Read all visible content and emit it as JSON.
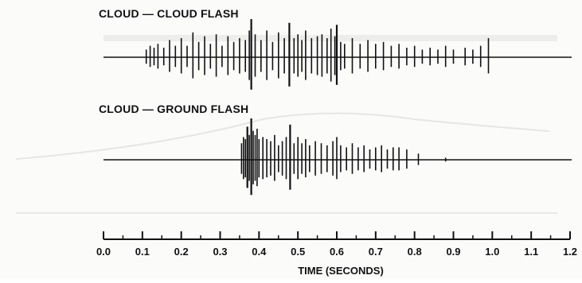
{
  "chart_data": [
    {
      "type": "line",
      "title": "CLOUD — CLOUD FLASH",
      "xlabel": "TIME (SECONDS)",
      "ylabel": "",
      "xlim": [
        0.0,
        1.2
      ],
      "grid": false,
      "x": [
        0.11,
        0.12,
        0.13,
        0.14,
        0.155,
        0.17,
        0.185,
        0.2,
        0.215,
        0.23,
        0.245,
        0.26,
        0.275,
        0.29,
        0.305,
        0.32,
        0.335,
        0.35,
        0.365,
        0.375,
        0.38,
        0.39,
        0.405,
        0.42,
        0.435,
        0.45,
        0.465,
        0.478,
        0.49,
        0.5,
        0.51,
        0.52,
        0.535,
        0.55,
        0.562,
        0.575,
        0.585,
        0.595,
        0.6,
        0.61,
        0.62,
        0.64,
        0.66,
        0.68,
        0.7,
        0.72,
        0.74,
        0.76,
        0.78,
        0.8,
        0.82,
        0.84,
        0.86,
        0.88,
        0.9,
        0.93,
        0.95,
        0.97,
        0.99
      ],
      "y": [
        0.2,
        0.3,
        0.25,
        0.35,
        0.25,
        0.45,
        0.3,
        0.5,
        0.3,
        0.65,
        0.4,
        0.55,
        0.35,
        0.6,
        0.3,
        0.55,
        0.4,
        0.5,
        0.45,
        0.7,
        1.0,
        0.6,
        0.45,
        0.7,
        0.4,
        0.65,
        0.5,
        0.9,
        0.5,
        0.6,
        0.45,
        0.7,
        0.5,
        0.55,
        0.6,
        0.5,
        0.75,
        0.55,
        0.85,
        0.4,
        0.35,
        0.5,
        0.35,
        0.45,
        0.35,
        0.4,
        0.3,
        0.35,
        0.25,
        0.3,
        0.2,
        0.25,
        0.2,
        0.3,
        0.2,
        0.25,
        0.2,
        0.3,
        0.5
      ]
    },
    {
      "type": "line",
      "title": "CLOUD — GROUND FLASH",
      "xlabel": "TIME (SECONDS)",
      "ylabel": "",
      "xlim": [
        0.0,
        1.2
      ],
      "grid": false,
      "x": [
        0.355,
        0.36,
        0.365,
        0.37,
        0.375,
        0.38,
        0.385,
        0.39,
        0.395,
        0.4,
        0.41,
        0.42,
        0.43,
        0.44,
        0.45,
        0.46,
        0.47,
        0.48,
        0.49,
        0.5,
        0.51,
        0.52,
        0.53,
        0.545,
        0.56,
        0.575,
        0.59,
        0.6,
        0.61,
        0.625,
        0.64,
        0.655,
        0.67,
        0.685,
        0.7,
        0.715,
        0.73,
        0.745,
        0.76,
        0.78,
        0.81,
        0.88
      ],
      "y": [
        0.4,
        0.55,
        0.5,
        0.8,
        0.6,
        1.0,
        0.7,
        0.6,
        0.75,
        0.5,
        0.55,
        0.5,
        0.45,
        0.6,
        0.35,
        0.45,
        0.55,
        0.85,
        0.4,
        0.55,
        0.4,
        0.5,
        0.35,
        0.45,
        0.4,
        0.35,
        0.45,
        0.55,
        0.35,
        0.3,
        0.4,
        0.3,
        0.35,
        0.25,
        0.3,
        0.35,
        0.25,
        0.3,
        0.3,
        0.25,
        0.15,
        0.05
      ]
    }
  ],
  "axis": {
    "ticks": [
      "0.0",
      "0.1",
      "0.2",
      "0.3",
      "0.4",
      "0.5",
      "0.6",
      "0.7",
      "0.8",
      "0.9",
      "1.0",
      "1.1",
      "1.2"
    ],
    "label": "TIME (SECONDS)"
  }
}
